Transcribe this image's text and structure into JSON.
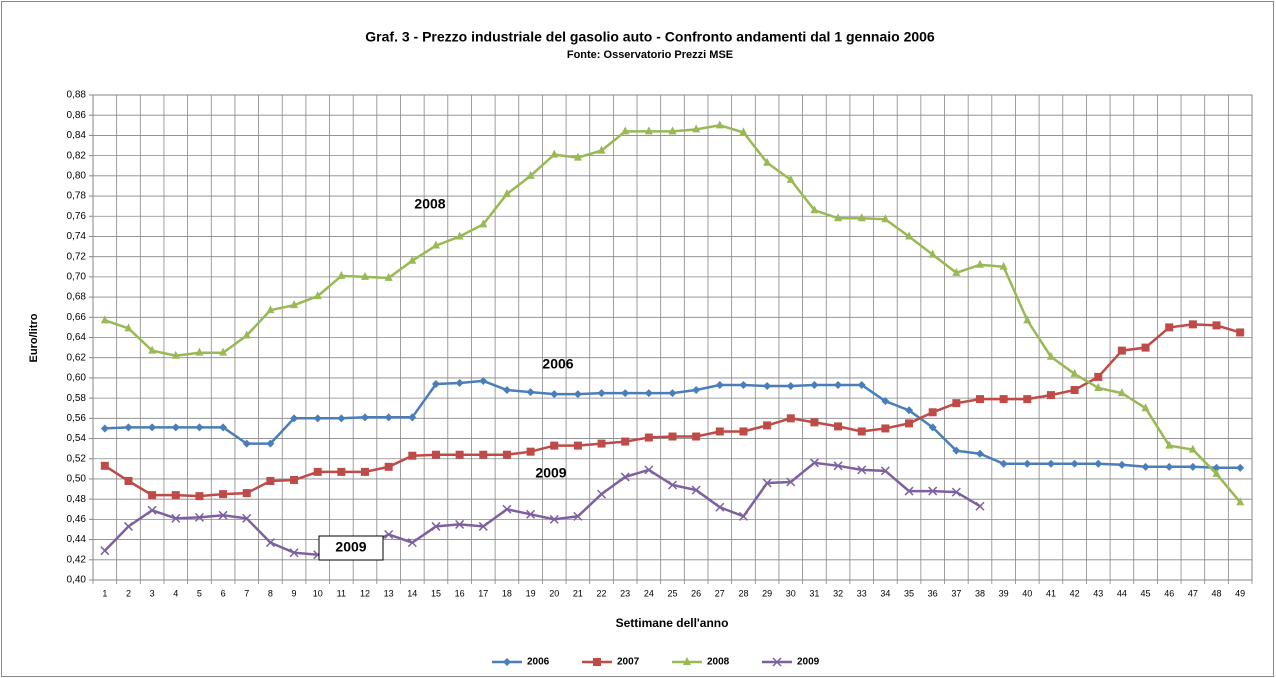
{
  "chart_data": {
    "type": "line",
    "title": "Graf. 3 - Prezzo industriale del gasolio auto - Confronto andamenti dal 1 gennaio 2006",
    "subtitle": "Fonte: Osservatorio Prezzi MSE",
    "y_label": "Euro/litro",
    "x_label": "Settimane dell'anno",
    "categories": [
      1,
      2,
      3,
      4,
      5,
      6,
      7,
      8,
      9,
      10,
      11,
      12,
      13,
      14,
      15,
      16,
      17,
      18,
      19,
      20,
      21,
      22,
      23,
      24,
      25,
      26,
      27,
      28,
      29,
      30,
      31,
      32,
      33,
      34,
      35,
      36,
      37,
      38,
      39,
      40,
      41,
      42,
      43,
      44,
      45,
      46,
      47,
      48,
      49
    ],
    "series": [
      {
        "name": "2006",
        "color": "#4a7ebb",
        "marker": "diamond",
        "values": [
          0.55,
          0.551,
          0.551,
          0.551,
          0.551,
          0.551,
          0.535,
          0.535,
          0.56,
          0.56,
          0.56,
          0.561,
          0.561,
          0.561,
          0.594,
          0.595,
          0.597,
          0.588,
          0.586,
          0.584,
          0.584,
          0.585,
          0.585,
          0.585,
          0.585,
          0.588,
          0.593,
          0.593,
          0.592,
          0.592,
          0.593,
          0.593,
          0.593,
          0.577,
          0.568,
          0.551,
          0.528,
          0.525,
          0.515,
          0.515,
          0.515,
          0.515,
          0.515,
          0.514,
          0.512,
          0.512,
          0.512,
          0.511,
          0.511
        ]
      },
      {
        "name": "2007",
        "color": "#be4b48",
        "marker": "square",
        "values": [
          0.513,
          0.498,
          0.484,
          0.484,
          0.483,
          0.485,
          0.486,
          0.498,
          0.499,
          0.507,
          0.507,
          0.507,
          0.512,
          0.523,
          0.524,
          0.524,
          0.524,
          0.524,
          0.527,
          0.533,
          0.533,
          0.535,
          0.537,
          0.541,
          0.542,
          0.542,
          0.547,
          0.547,
          0.553,
          0.56,
          0.556,
          0.552,
          0.547,
          0.55,
          0.555,
          0.566,
          0.575,
          0.579,
          0.579,
          0.579,
          0.583,
          0.588,
          0.601,
          0.627,
          0.63,
          0.65,
          0.653,
          0.652,
          0.645
        ]
      },
      {
        "name": "2008",
        "color": "#98b954",
        "marker": "triangle",
        "values": [
          0.657,
          0.649,
          0.627,
          0.622,
          0.625,
          0.625,
          0.642,
          0.667,
          0.672,
          0.681,
          0.701,
          0.7,
          0.699,
          0.716,
          0.731,
          0.74,
          0.752,
          0.782,
          0.8,
          0.821,
          0.818,
          0.825,
          0.844,
          0.844,
          0.844,
          0.846,
          0.85,
          0.843,
          0.813,
          0.796,
          0.766,
          0.758,
          0.758,
          0.757,
          0.74,
          0.722,
          0.704,
          0.712,
          0.71,
          0.657,
          0.621,
          0.604,
          0.59,
          0.585,
          0.57,
          0.533,
          0.529,
          0.505,
          0.477
        ]
      },
      {
        "name": "2009",
        "color": "#7d60a0",
        "marker": "x",
        "values": [
          0.429,
          0.453,
          0.469,
          0.461,
          0.462,
          0.464,
          0.461,
          0.437,
          0.427,
          0.425,
          0.428,
          0.433,
          0.445,
          0.437,
          0.453,
          0.455,
          0.453,
          0.47,
          0.465,
          0.46,
          0.463,
          0.485,
          0.502,
          0.509,
          0.494,
          0.489,
          0.472,
          0.463,
          0.496,
          0.497,
          0.516,
          0.513,
          0.509,
          0.508,
          0.488,
          0.488,
          0.487,
          0.473,
          null,
          null,
          null,
          null,
          null,
          null,
          null,
          null,
          null,
          null,
          null
        ]
      }
    ],
    "annotations": [
      "2008",
      "2006",
      "2009",
      "2009"
    ],
    "ylim": [
      0.4,
      0.88
    ],
    "yticks": [
      {
        "value": 0.4,
        "label": "0,40"
      },
      {
        "value": 0.42,
        "label": "0,42"
      },
      {
        "value": 0.44,
        "label": "0,44"
      },
      {
        "value": 0.46,
        "label": "0,46"
      },
      {
        "value": 0.48,
        "label": "0,48"
      },
      {
        "value": 0.5,
        "label": "0,50"
      },
      {
        "value": 0.52,
        "label": "0,52"
      },
      {
        "value": 0.54,
        "label": "0,54"
      },
      {
        "value": 0.56,
        "label": "0,56"
      },
      {
        "value": 0.58,
        "label": "0,58"
      },
      {
        "value": 0.6,
        "label": "0,60"
      },
      {
        "value": 0.62,
        "label": "0,62"
      },
      {
        "value": 0.64,
        "label": "0,64"
      },
      {
        "value": 0.66,
        "label": "0,66"
      },
      {
        "value": 0.68,
        "label": "0,68"
      },
      {
        "value": 0.7,
        "label": "0,70"
      },
      {
        "value": 0.72,
        "label": "0,72"
      },
      {
        "value": 0.74,
        "label": "0,74"
      },
      {
        "value": 0.76,
        "label": "0,76"
      },
      {
        "value": 0.78,
        "label": "0,78"
      },
      {
        "value": 0.8,
        "label": "0,80"
      },
      {
        "value": 0.82,
        "label": "0,82"
      },
      {
        "value": 0.84,
        "label": "0,84"
      },
      {
        "value": 0.86,
        "label": "0,86"
      },
      {
        "value": 0.88,
        "label": "0,88"
      }
    ],
    "grid": true,
    "legend": "bottom"
  }
}
